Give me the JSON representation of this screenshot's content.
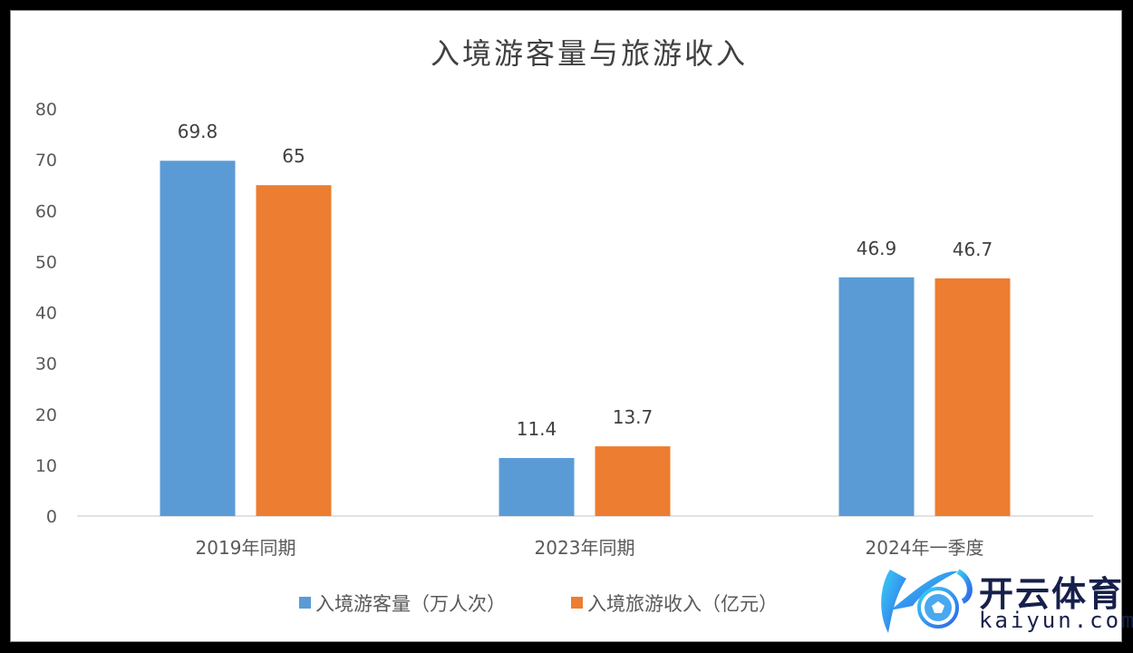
{
  "chart_data": {
    "type": "bar",
    "title": "入境游客量与旅游收入",
    "categories": [
      "2019年同期",
      "2023年同期",
      "2024年一季度"
    ],
    "series": [
      {
        "name": "入境游客量（万人次）",
        "values": [
          69.8,
          11.4,
          46.9
        ],
        "labels": [
          "69.8",
          "11.4",
          "46.9"
        ],
        "color": "#5B9BD5"
      },
      {
        "name": "入境旅游收入（亿元）",
        "values": [
          65,
          13.7,
          46.7
        ],
        "labels": [
          "65",
          "13.7",
          "46.7"
        ],
        "color": "#ED7D31"
      }
    ],
    "yticks": [
      "0",
      "10",
      "20",
      "30",
      "40",
      "50",
      "60",
      "70",
      "80"
    ],
    "ylim": [
      0,
      80
    ],
    "grid": false,
    "legend": "bottom",
    "xlabel": "",
    "ylabel": ""
  },
  "watermark": {
    "cn": "开云体育",
    "en": "kaiyun.com"
  }
}
